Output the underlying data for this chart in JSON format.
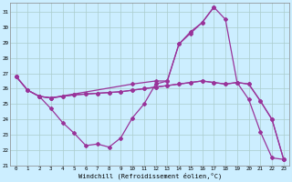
{
  "bg_color": "#cceeff",
  "grid_color": "#aacccc",
  "line_color": "#993399",
  "xlabel": "Windchill (Refroidissement éolien,°C)",
  "xlim_min": -0.5,
  "xlim_max": 23.5,
  "ylim_min": 21,
  "ylim_max": 31.6,
  "yticks": [
    21,
    22,
    23,
    24,
    25,
    26,
    27,
    28,
    29,
    30,
    31
  ],
  "xticks": [
    0,
    1,
    2,
    3,
    4,
    5,
    6,
    7,
    8,
    9,
    10,
    11,
    12,
    13,
    14,
    15,
    16,
    17,
    18,
    19,
    20,
    21,
    22,
    23
  ],
  "lines": [
    {
      "x": [
        0,
        1,
        2,
        3,
        4,
        5,
        6,
        7,
        8,
        9,
        10,
        11,
        12,
        13,
        14,
        15,
        16,
        17
      ],
      "y": [
        26.8,
        25.9,
        25.5,
        24.7,
        23.8,
        23.1,
        22.3,
        22.4,
        22.2,
        22.8,
        24.1,
        25.0,
        26.3,
        26.5,
        28.9,
        29.6,
        30.3,
        31.3
      ]
    },
    {
      "x": [
        0,
        1,
        2,
        3,
        4,
        5,
        6,
        7,
        8,
        9,
        10,
        11,
        12,
        13,
        14,
        15,
        16,
        17,
        18,
        19,
        20,
        21,
        22,
        23
      ],
      "y": [
        26.8,
        25.9,
        25.5,
        25.4,
        25.5,
        25.6,
        25.65,
        25.7,
        25.75,
        25.8,
        25.9,
        26.0,
        26.1,
        26.2,
        26.3,
        26.4,
        26.5,
        26.4,
        26.3,
        26.4,
        26.3,
        25.2,
        24.0,
        21.4
      ]
    },
    {
      "x": [
        2,
        3,
        10,
        12,
        13,
        14,
        15,
        16,
        17,
        18,
        19,
        20,
        21,
        22,
        23
      ],
      "y": [
        25.5,
        25.4,
        26.3,
        26.5,
        26.5,
        28.9,
        29.7,
        30.3,
        31.3,
        30.5,
        26.4,
        25.3,
        23.2,
        21.5,
        21.4
      ]
    },
    {
      "x": [
        0,
        1,
        2,
        3,
        4,
        5,
        6,
        7,
        8,
        9,
        10,
        11,
        12,
        13,
        14,
        15,
        16,
        17,
        18,
        19,
        20,
        21,
        22,
        23
      ],
      "y": [
        26.8,
        25.9,
        25.5,
        25.4,
        25.5,
        25.6,
        25.65,
        25.7,
        25.75,
        25.8,
        25.9,
        26.0,
        26.1,
        26.2,
        26.3,
        26.4,
        26.5,
        26.4,
        26.3,
        26.4,
        26.3,
        25.2,
        24.0,
        21.4
      ]
    }
  ]
}
